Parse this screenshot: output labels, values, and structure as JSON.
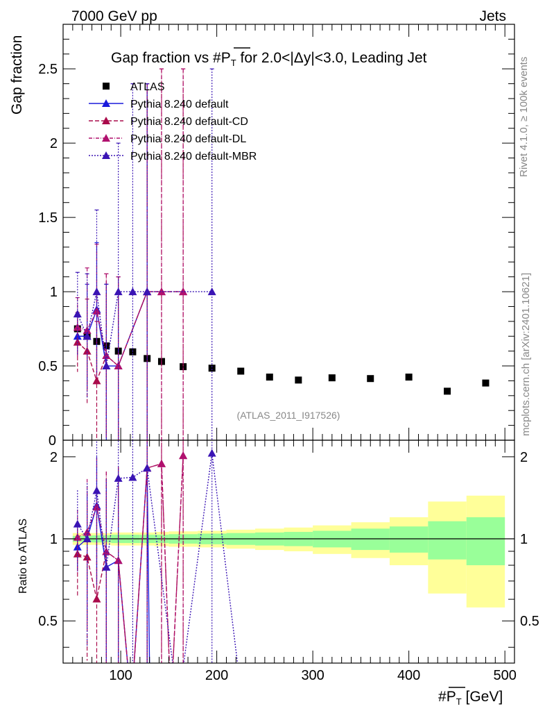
{
  "header": {
    "left": "7000 GeV pp",
    "right": "Jets"
  },
  "side": {
    "rivet": "Rivet 4.1.0, ≥ 100k events",
    "mcplots": "mcplots.cern.ch [arXiv:2401.10621]"
  },
  "chart_data": {
    "type": "scatter",
    "title": "Gap fraction vs #P̅T for 2.0<|Δy|<3.0, Leading Jet",
    "title_parts": [
      "Gap fraction vs #",
      "P",
      "T",
      " for 2.0<|Δy|<3.0, Leading Jet"
    ],
    "ylabel": "Gap fraction",
    "ratio_ylabel": "Ratio to ATLAS",
    "xlabel_parts": [
      "#",
      "P",
      "T",
      " [GeV]"
    ],
    "xlim": [
      40,
      510
    ],
    "ylim": [
      0,
      2.8
    ],
    "ratio_ylim": [
      0.35,
      2.3
    ],
    "main_yticks": [
      {
        "v": 0.5,
        "l": "0.5"
      },
      {
        "v": 1,
        "l": "1"
      },
      {
        "v": 1.5,
        "l": "1.5"
      },
      {
        "v": 2,
        "l": "2"
      },
      {
        "v": 2.5,
        "l": "2.5"
      }
    ],
    "ratio_yticks": [
      {
        "v": 0.5,
        "l": "0.5"
      },
      {
        "v": 1,
        "l": "1"
      },
      {
        "v": 2,
        "l": "2"
      }
    ],
    "xticks": [
      {
        "v": 100,
        "l": "100"
      },
      {
        "v": 200,
        "l": "200"
      },
      {
        "v": 300,
        "l": "300"
      },
      {
        "v": 400,
        "l": "400"
      },
      {
        "v": 500,
        "l": "500"
      }
    ],
    "watermark": "(ATLAS_2011_I917526)",
    "atlas": {
      "name": "ATLAS",
      "x": [
        55,
        65,
        75,
        85,
        97.5,
        112.5,
        127.5,
        142.5,
        165,
        195,
        225,
        255,
        285,
        320,
        360,
        400,
        440,
        480
      ],
      "y": [
        0.75,
        0.7,
        0.665,
        0.635,
        0.6,
        0.595,
        0.55,
        0.53,
        0.495,
        0.485,
        0.465,
        0.425,
        0.405,
        0.42,
        0.415,
        0.425,
        0.33,
        0.385
      ],
      "xlo": [
        50,
        60,
        70,
        80,
        90,
        105,
        120,
        135,
        150,
        180,
        210,
        240,
        270,
        300,
        340,
        380,
        420,
        460
      ],
      "xhi": [
        60,
        70,
        80,
        90,
        105,
        120,
        135,
        150,
        180,
        210,
        240,
        270,
        300,
        340,
        380,
        420,
        460,
        500
      ],
      "band_inner": [
        0.025,
        0.025,
        0.03,
        0.03,
        0.035,
        0.035,
        0.035,
        0.035,
        0.04,
        0.045,
        0.05,
        0.055,
        0.06,
        0.07,
        0.09,
        0.11,
        0.16,
        0.2
      ],
      "band_outer": [
        0.05,
        0.05,
        0.05,
        0.05,
        0.055,
        0.055,
        0.055,
        0.06,
        0.065,
        0.07,
        0.08,
        0.09,
        0.1,
        0.12,
        0.15,
        0.2,
        0.37,
        0.44
      ]
    },
    "series": [
      {
        "name": "Pythia 8.240 default",
        "color": "#1a1adc",
        "dash": "",
        "x": [
          55,
          65,
          75,
          85,
          97.5,
          127.5
        ],
        "y": [
          0.7,
          0.7,
          0.88,
          0.5,
          0.5,
          1.0
        ],
        "err": [
          0.13,
          0.35,
          0.45,
          0.55,
          0.6,
          1.4
        ]
      },
      {
        "name": "Pythia 8.240 default-CD",
        "color": "#aa0b4b",
        "dash": "6,3",
        "x": [
          55,
          65,
          75,
          85,
          97.5,
          127.5,
          142.5,
          165
        ],
        "y": [
          0.66,
          0.6,
          0.4,
          0.57,
          0.5,
          1.0,
          1.0,
          1.0
        ],
        "err": [
          0.2,
          0.35,
          0.4,
          0.55,
          0.6,
          1.4,
          1.5,
          1.5
        ]
      },
      {
        "name": "Pythia 8.240 default-DL",
        "color": "#b0106e",
        "dash": "5,2,1,2",
        "x": [
          55,
          65,
          75,
          85,
          97.5,
          127.5,
          142.5,
          165
        ],
        "y": [
          0.76,
          0.74,
          0.87,
          0.57,
          0.5,
          1.0,
          1.0,
          1.0
        ],
        "err": [
          0.2,
          0.42,
          0.45,
          0.55,
          0.6,
          1.4,
          1.5,
          1.5
        ]
      },
      {
        "name": "Pythia 8.240 default-MBR",
        "color": "#3a14b4",
        "dash": "2,2",
        "x": [
          55,
          65,
          75,
          85,
          97.5,
          112.5,
          127.5,
          195
        ],
        "y": [
          0.85,
          0.7,
          1.0,
          0.5,
          1.0,
          1.0,
          1.0,
          1.0
        ],
        "err": [
          0.28,
          0.42,
          0.55,
          0.55,
          1.0,
          1.4,
          1.4,
          1.5
        ]
      }
    ]
  }
}
